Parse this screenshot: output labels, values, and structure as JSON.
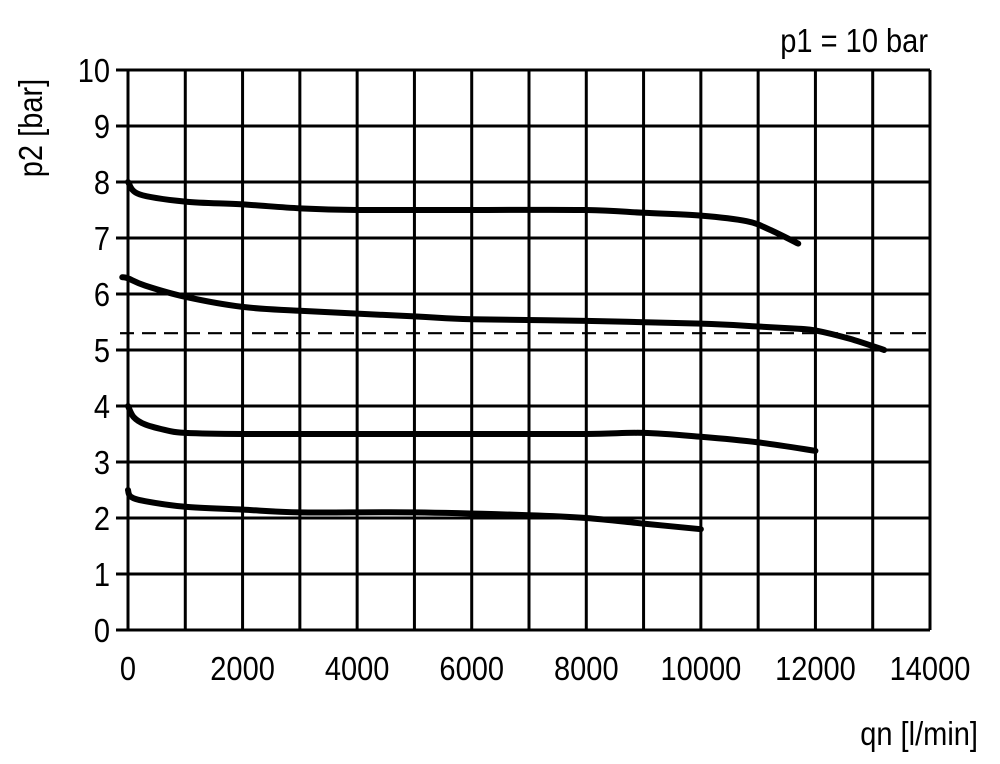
{
  "chart_data": {
    "type": "line",
    "annotation": "p1 = 10 bar",
    "xlabel": "qn [l/min]",
    "ylabel": "p2 [bar]",
    "xlim": [
      0,
      14000
    ],
    "ylim": [
      0,
      10
    ],
    "grid": true,
    "x_grid_step": 1000,
    "y_grid_step": 1,
    "xticks": [
      0,
      2000,
      4000,
      6000,
      8000,
      10000,
      12000,
      14000
    ],
    "xtick_labels": [
      "0",
      "2000",
      "4000",
      "6000",
      "8000",
      "10000",
      "12000",
      "14000"
    ],
    "yticks": [
      0,
      1,
      2,
      3,
      4,
      5,
      6,
      7,
      8,
      9,
      10
    ],
    "ytick_labels": [
      "0",
      "1",
      "2",
      "3",
      "4",
      "5",
      "6",
      "7",
      "8",
      "9",
      "10"
    ],
    "reference_line": {
      "y": 5.3,
      "style": "dashed"
    },
    "line_color": "#000000",
    "series": [
      {
        "x": [
          0,
          200,
          1000,
          2000,
          3000,
          4000,
          6000,
          8000,
          9000,
          10000,
          10800,
          11200,
          11700
        ],
        "y": [
          8.0,
          7.78,
          7.65,
          7.6,
          7.53,
          7.5,
          7.5,
          7.5,
          7.45,
          7.4,
          7.3,
          7.15,
          6.9
        ]
      },
      {
        "x": [
          -100,
          0,
          300,
          1000,
          2000,
          3000,
          5000,
          6000,
          8000,
          10000,
          11000,
          11700,
          12000,
          12600,
          13200
        ],
        "y": [
          6.3,
          6.28,
          6.15,
          5.95,
          5.77,
          5.7,
          5.6,
          5.55,
          5.52,
          5.47,
          5.42,
          5.38,
          5.35,
          5.2,
          5.0
        ]
      },
      {
        "x": [
          0,
          100,
          300,
          700,
          1000,
          2000,
          4000,
          6000,
          8000,
          9000,
          10000,
          11000,
          12000
        ],
        "y": [
          4.0,
          3.8,
          3.67,
          3.56,
          3.52,
          3.5,
          3.5,
          3.5,
          3.5,
          3.52,
          3.45,
          3.35,
          3.2
        ]
      },
      {
        "x": [
          0,
          50,
          300,
          1000,
          2000,
          3000,
          5000,
          7000,
          8000,
          9000,
          10000
        ],
        "y": [
          2.5,
          2.38,
          2.3,
          2.2,
          2.15,
          2.1,
          2.1,
          2.05,
          2.0,
          1.9,
          1.8
        ]
      }
    ]
  }
}
